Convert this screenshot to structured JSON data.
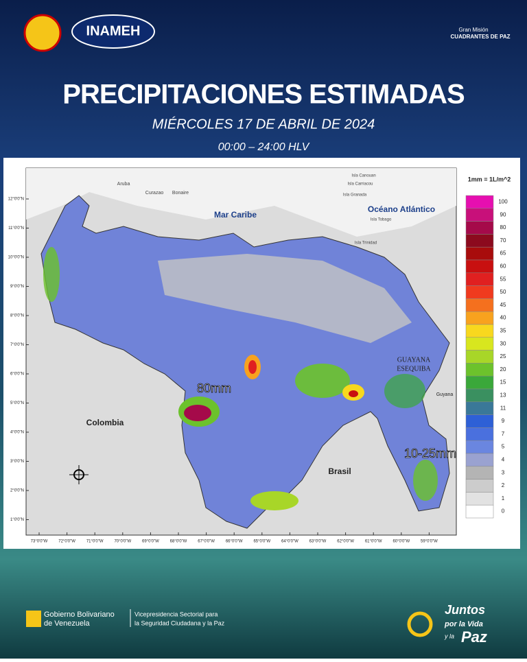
{
  "header": {
    "logo_left": "INAMEH",
    "logo_right_top": "Gran Misión",
    "logo_right_bottom": "CUADRANTES DE PAZ",
    "title": "PRECIPITACIONES ESTIMADAS",
    "date": "MIÉRCOLES 17 DE ABRIL DE 2024",
    "time": "00:00 – 24:00 HLV"
  },
  "map": {
    "unit_note": "1mm = 1L/m^2",
    "places": {
      "sea": "Mar Caribe",
      "ocean": "Océano Atlántico",
      "colombia": "Colombia",
      "brasil": "Brasil",
      "esequiba_1": "GUAYANA",
      "esequiba_2": "ESEQUIBA",
      "guyana": "Guyana",
      "aruba": "Aruba",
      "curazao": "Curazao",
      "bonaire": "Bonaire",
      "carriacou": "Isla Canouan",
      "carriacou2": "Isla Carriacou",
      "grenada": "Isla Granada",
      "tobago": "Isla Tobago",
      "trinidad": "Isla Trinidad"
    },
    "annotations": {
      "west": "80mm",
      "east": "10-25mm"
    },
    "lat_ticks": [
      "12°0'0\"N",
      "11°0'0\"N",
      "10°0'0\"N",
      "9°0'0\"N",
      "8°0'0\"N",
      "7°0'0\"N",
      "6°0'0\"N",
      "5°0'0\"N",
      "4°0'0\"N",
      "3°0'0\"N",
      "2°0'0\"N",
      "1°0'0\"N"
    ],
    "lon_ticks": [
      "73°0'0\"W",
      "72°0'0\"W",
      "71°0'0\"W",
      "70°0'0\"W",
      "69°0'0\"W",
      "68°0'0\"W",
      "67°0'0\"W",
      "66°0'0\"W",
      "65°0'0\"W",
      "64°0'0\"W",
      "63°0'0\"W",
      "62°0'0\"W",
      "61°0'0\"W",
      "60°0'0\"W",
      "59°0'0\"W"
    ],
    "legend": [
      {
        "label": 100,
        "color": "#e60fb0"
      },
      {
        "label": 90,
        "color": "#c8107a"
      },
      {
        "label": 80,
        "color": "#a50a4a"
      },
      {
        "label": 70,
        "color": "#8c0a1e"
      },
      {
        "label": 65,
        "color": "#a80c0c"
      },
      {
        "label": 60,
        "color": "#c81010"
      },
      {
        "label": 55,
        "color": "#e02020"
      },
      {
        "label": 50,
        "color": "#f03a1e"
      },
      {
        "label": 45,
        "color": "#f5701e"
      },
      {
        "label": 40,
        "color": "#f8a21e"
      },
      {
        "label": 35,
        "color": "#f8d81e"
      },
      {
        "label": 30,
        "color": "#d8e61e"
      },
      {
        "label": 25,
        "color": "#a8d628"
      },
      {
        "label": 20,
        "color": "#6cc22c"
      },
      {
        "label": 15,
        "color": "#3aa83a"
      },
      {
        "label": 13,
        "color": "#3a9060"
      },
      {
        "label": 11,
        "color": "#3a7898"
      },
      {
        "label": 9,
        "color": "#2e60d6"
      },
      {
        "label": 7,
        "color": "#4a70de"
      },
      {
        "label": 5,
        "color": "#6a86e0"
      },
      {
        "label": 4,
        "color": "#9aa2d0"
      },
      {
        "label": 3,
        "color": "#b4b4b4"
      },
      {
        "label": 2,
        "color": "#cccccc"
      },
      {
        "label": 1,
        "color": "#e2e2e2"
      },
      {
        "label": 0,
        "color": "#ffffff"
      }
    ]
  },
  "footer": {
    "gov_1": "Gobierno Bolivariano",
    "gov_2": "de Venezuela",
    "vp_1": "Vicepresidencia Sectorial para",
    "vp_2": "la Seguridad Ciudadana y la Paz",
    "slogan_1": "Juntos",
    "slogan_2": "por la Vida",
    "slogan_3": "y la",
    "slogan_4": "Paz"
  }
}
